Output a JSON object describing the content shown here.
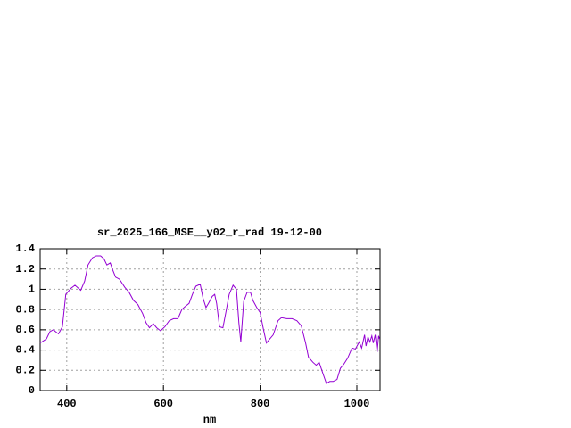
{
  "chart_data": {
    "type": "line",
    "title": "sr_2025_166_MSE__y02_r_rad 19-12-00",
    "xlabel": "nm",
    "x": [
      345,
      358,
      365,
      372,
      380,
      383,
      391,
      398,
      409,
      417,
      424,
      429,
      437,
      444,
      453,
      461,
      470,
      477,
      483,
      490,
      496,
      501,
      509,
      520,
      529,
      538,
      547,
      557,
      564,
      571,
      579,
      586,
      594,
      603,
      612,
      621,
      630,
      638,
      645,
      653,
      660,
      667,
      676,
      682,
      688,
      693,
      701,
      706,
      710,
      716,
      723,
      729,
      736,
      744,
      751,
      756,
      760,
      766,
      773,
      780,
      785,
      793,
      800,
      807,
      813,
      820,
      827,
      837,
      844,
      855,
      866,
      876,
      885,
      894,
      900,
      909,
      916,
      922,
      929,
      937,
      944,
      951,
      959,
      966,
      973,
      981,
      990,
      997,
      1005,
      1010,
      1016,
      1019,
      1023,
      1027,
      1031,
      1034,
      1038,
      1042,
      1045,
      1047
    ],
    "series": [
      {
        "color": "#9400d3",
        "values": [
          0.47,
          0.51,
          0.58,
          0.6,
          0.57,
          0.56,
          0.63,
          0.95,
          1.01,
          1.04,
          1.01,
          0.99,
          1.08,
          1.24,
          1.31,
          1.33,
          1.33,
          1.3,
          1.24,
          1.26,
          1.18,
          1.12,
          1.1,
          1.02,
          0.97,
          0.89,
          0.85,
          0.76,
          0.67,
          0.62,
          0.66,
          0.62,
          0.59,
          0.63,
          0.69,
          0.71,
          0.71,
          0.8,
          0.83,
          0.86,
          0.95,
          1.03,
          1.05,
          0.91,
          0.82,
          0.86,
          0.93,
          0.95,
          0.86,
          0.63,
          0.62,
          0.77,
          0.95,
          1.04,
          1.0,
          0.67,
          0.48,
          0.88,
          0.97,
          0.97,
          0.89,
          0.82,
          0.77,
          0.6,
          0.47,
          0.51,
          0.55,
          0.69,
          0.72,
          0.71,
          0.71,
          0.69,
          0.64,
          0.47,
          0.33,
          0.28,
          0.25,
          0.28,
          0.18,
          0.07,
          0.09,
          0.09,
          0.11,
          0.22,
          0.26,
          0.32,
          0.42,
          0.41,
          0.48,
          0.42,
          0.55,
          0.44,
          0.53,
          0.48,
          0.54,
          0.47,
          0.55,
          0.38,
          0.54,
          0.51
        ]
      }
    ],
    "xlim": [
      345,
      1048
    ],
    "xticks": [
      400,
      600,
      800,
      1000
    ],
    "ylim": [
      0,
      1.4
    ],
    "yticks": [
      0,
      0.2,
      0.4,
      0.6,
      0.8,
      1,
      1.2,
      1.4
    ],
    "grid": true
  }
}
